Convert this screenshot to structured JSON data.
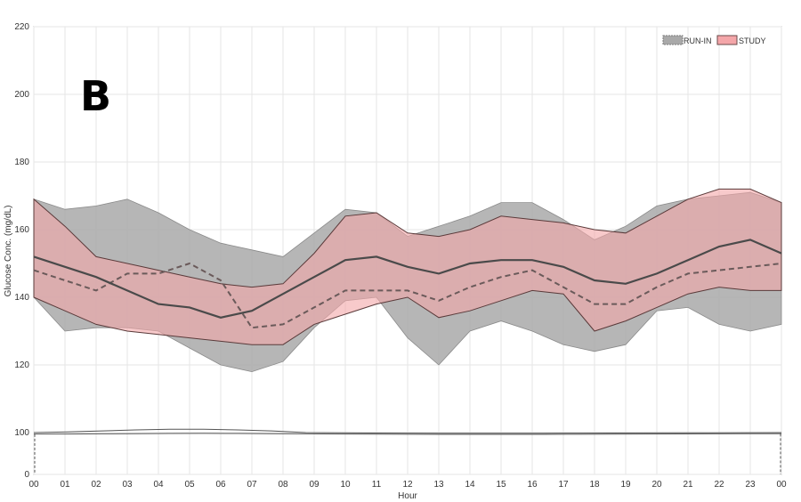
{
  "chart_data": {
    "type": "area",
    "panel_label": "B",
    "xlabel": "Hour",
    "ylabel": "Glucose Conc. (mg/dL)",
    "x_ticks": [
      "00",
      "01",
      "02",
      "03",
      "04",
      "05",
      "06",
      "07",
      "08",
      "09",
      "10",
      "11",
      "12",
      "13",
      "14",
      "15",
      "16",
      "17",
      "18",
      "19",
      "20",
      "21",
      "22",
      "23",
      "00"
    ],
    "y_ticks": [
      0,
      100,
      120,
      140,
      160,
      180,
      200,
      220
    ],
    "xlim": [
      0,
      24
    ],
    "ylim": [
      0,
      220
    ],
    "y_axis_break": [
      0,
      100
    ],
    "grid": true,
    "legend": {
      "placement": "top-right",
      "entries": [
        "RUN-IN",
        "STUDY"
      ]
    },
    "colors": {
      "run_in": "#a9a9a9",
      "study": "#f4a6a9",
      "median_line": "#4a4a4a",
      "grid": "#e6e6e6"
    },
    "x": [
      0,
      1,
      2,
      3,
      4,
      5,
      6,
      7,
      8,
      9,
      10,
      11,
      12,
      13,
      14,
      15,
      16,
      17,
      18,
      19,
      20,
      21,
      22,
      23,
      24
    ],
    "series": [
      {
        "name": "RUN-IN",
        "lower": [
          140,
          130,
          131,
          131,
          130,
          125,
          120,
          118,
          121,
          131,
          139,
          140,
          128,
          120,
          130,
          133,
          130,
          126,
          124,
          126,
          136,
          137,
          132,
          130,
          132
        ],
        "upper": [
          169,
          166,
          167,
          169,
          165,
          160,
          156,
          154,
          152,
          159,
          166,
          165,
          158,
          161,
          164,
          168,
          168,
          163,
          157,
          161,
          167,
          169,
          170,
          171,
          168
        ],
        "median": [
          148,
          145,
          142,
          147,
          147,
          150,
          145,
          131,
          132,
          137,
          142,
          142,
          142,
          139,
          143,
          146,
          148,
          143,
          138,
          138,
          143,
          147,
          148,
          149,
          150
        ]
      },
      {
        "name": "STUDY",
        "lower": [
          140,
          136,
          132,
          130,
          129,
          128,
          127,
          126,
          126,
          132,
          135,
          138,
          140,
          134,
          136,
          139,
          142,
          141,
          130,
          133,
          137,
          141,
          143,
          142,
          142
        ],
        "upper": [
          169,
          161,
          152,
          150,
          148,
          146,
          144,
          143,
          144,
          153,
          164,
          165,
          159,
          158,
          160,
          164,
          163,
          162,
          160,
          159,
          164,
          169,
          172,
          172,
          168
        ],
        "median": [
          152,
          149,
          146,
          142,
          138,
          137,
          134,
          136,
          141,
          146,
          151,
          152,
          149,
          147,
          150,
          151,
          151,
          149,
          145,
          144,
          147,
          151,
          155,
          157,
          153
        ]
      }
    ],
    "baseline_band": {
      "upper": [
        100,
        100.2,
        100.5,
        100.8,
        101,
        101,
        100.8,
        100.5,
        100,
        99.5,
        99,
        98.8,
        98.6,
        98.5,
        98.5,
        98.6,
        98.8,
        99,
        99.2,
        99.4,
        99.6,
        99.8,
        100
      ],
      "lower": [
        96.5,
        96.7,
        97,
        97.4,
        97.8,
        98,
        97.8,
        97.5,
        97,
        96.6,
        96.3,
        96,
        95.8,
        95.7,
        95.7,
        95.8,
        96,
        96.2,
        96.5,
        96.8,
        97,
        97.2,
        97.5
      ]
    }
  }
}
